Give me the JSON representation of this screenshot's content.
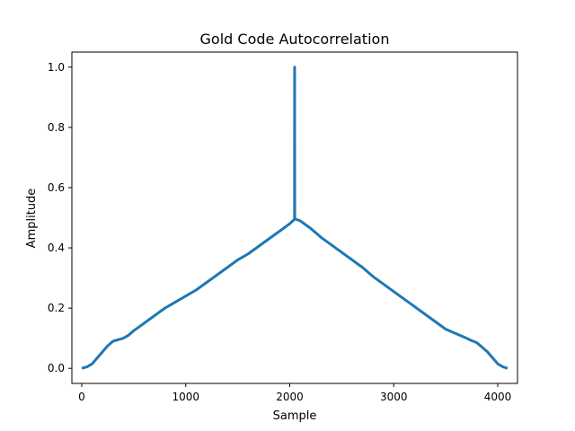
{
  "chart_data": {
    "type": "line",
    "title": "Gold Code Autocorrelation",
    "xlabel": "Sample",
    "ylabel": "Amplitude",
    "xlim": [
      -95,
      4190
    ],
    "ylim": [
      -0.05,
      1.05
    ],
    "xticks": [
      0,
      1000,
      2000,
      3000,
      4000
    ],
    "xtick_labels": [
      "0",
      "1000",
      "2000",
      "3000",
      "4000"
    ],
    "yticks": [
      0.0,
      0.2,
      0.4,
      0.6,
      0.8,
      1.0
    ],
    "ytick_labels": [
      "0.0",
      "0.2",
      "0.4",
      "0.6",
      "0.8",
      "1.0"
    ],
    "grid": false,
    "legend": "none",
    "series": [
      {
        "color": "#1f77b4",
        "x": [
          0,
          50,
          100,
          150,
          200,
          250,
          300,
          350,
          400,
          450,
          500,
          600,
          700,
          800,
          900,
          1000,
          1100,
          1200,
          1300,
          1400,
          1500,
          1600,
          1700,
          1800,
          1900,
          2000,
          2030,
          2046,
          2047,
          2048,
          2060,
          2100,
          2200,
          2300,
          2400,
          2500,
          2600,
          2700,
          2800,
          2900,
          3000,
          3100,
          3200,
          3300,
          3400,
          3500,
          3600,
          3700,
          3750,
          3800,
          3850,
          3900,
          3950,
          4000,
          4050,
          4094
        ],
        "y": [
          0.0,
          0.005,
          0.015,
          0.035,
          0.055,
          0.075,
          0.09,
          0.095,
          0.1,
          0.11,
          0.125,
          0.15,
          0.175,
          0.2,
          0.22,
          0.24,
          0.26,
          0.285,
          0.31,
          0.335,
          0.36,
          0.38,
          0.405,
          0.43,
          0.455,
          0.48,
          0.49,
          0.495,
          1.0,
          0.495,
          0.495,
          0.49,
          0.465,
          0.435,
          0.41,
          0.385,
          0.36,
          0.335,
          0.305,
          0.28,
          0.255,
          0.23,
          0.205,
          0.18,
          0.155,
          0.13,
          0.115,
          0.1,
          0.092,
          0.085,
          0.07,
          0.055,
          0.035,
          0.015,
          0.005,
          0.0
        ]
      }
    ]
  }
}
